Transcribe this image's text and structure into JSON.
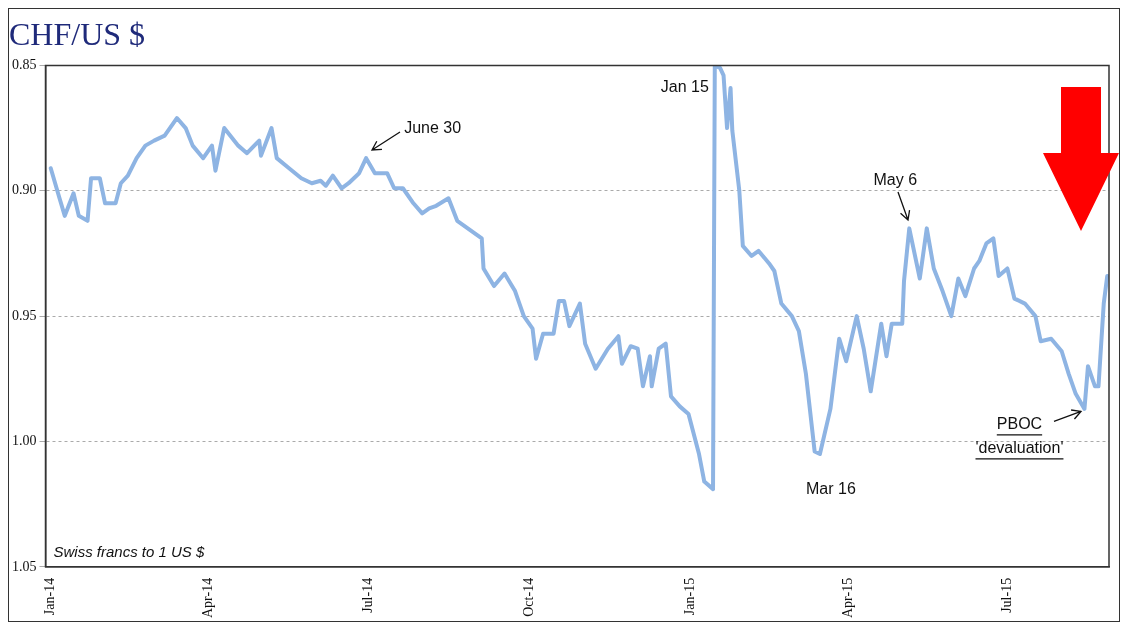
{
  "chart_data": {
    "type": "line",
    "title": "CHF/US $",
    "x": [
      "2014-01-01",
      "2014-01-06",
      "2014-01-09",
      "2014-01-14",
      "2014-01-17",
      "2014-01-22",
      "2014-01-24",
      "2014-01-29",
      "2014-02-01",
      "2014-02-07",
      "2014-02-10",
      "2014-02-14",
      "2014-02-19",
      "2014-02-24",
      "2014-03-01",
      "2014-03-07",
      "2014-03-14",
      "2014-03-19",
      "2014-03-23",
      "2014-03-29",
      "2014-04-03",
      "2014-04-05",
      "2014-04-10",
      "2014-04-18",
      "2014-04-23",
      "2014-04-30",
      "2014-05-01",
      "2014-05-07",
      "2014-05-10",
      "2014-05-17",
      "2014-05-24",
      "2014-05-30",
      "2014-06-04",
      "2014-06-07",
      "2014-06-11",
      "2014-06-16",
      "2014-06-20",
      "2014-06-26",
      "2014-06-30",
      "2014-07-05",
      "2014-07-12",
      "2014-07-16",
      "2014-07-21",
      "2014-07-27",
      "2014-08-01",
      "2014-08-05",
      "2014-08-09",
      "2014-08-16",
      "2014-08-21",
      "2014-08-27",
      "2014-09-04",
      "2014-09-05",
      "2014-09-11",
      "2014-09-17",
      "2014-09-23",
      "2014-09-28",
      "2014-10-03",
      "2014-10-05",
      "2014-10-09",
      "2014-10-15",
      "2014-10-18",
      "2014-10-21",
      "2014-10-24",
      "2014-10-30",
      "2014-11-02",
      "2014-11-08",
      "2014-11-15",
      "2014-11-21",
      "2014-11-23",
      "2014-11-28",
      "2014-12-02",
      "2014-12-05",
      "2014-12-09",
      "2014-12-10",
      "2014-12-14",
      "2014-12-18",
      "2014-12-21",
      "2014-12-26",
      "2014-12-31",
      "2015-01-06",
      "2015-01-09",
      "2015-01-14",
      "2015-01-15",
      "2015-01-18",
      "2015-01-20",
      "2015-01-22",
      "2015-01-24",
      "2015-01-25",
      "2015-01-29",
      "2015-01-31",
      "2015-02-05",
      "2015-02-09",
      "2015-02-15",
      "2015-02-18",
      "2015-02-22",
      "2015-02-28",
      "2015-03-04",
      "2015-03-08",
      "2015-03-13",
      "2015-03-16",
      "2015-03-22",
      "2015-03-27",
      "2015-03-31",
      "2015-04-06",
      "2015-04-10",
      "2015-04-14",
      "2015-04-20",
      "2015-04-23",
      "2015-04-26",
      "2015-05-02",
      "2015-05-03",
      "2015-05-06",
      "2015-05-12",
      "2015-05-16",
      "2015-05-20",
      "2015-05-25",
      "2015-05-30",
      "2015-06-03",
      "2015-06-07",
      "2015-06-12",
      "2015-06-15",
      "2015-06-19",
      "2015-06-23",
      "2015-06-26",
      "2015-07-01",
      "2015-07-05",
      "2015-07-11",
      "2015-07-17",
      "2015-07-20",
      "2015-07-26",
      "2015-08-01",
      "2015-08-05",
      "2015-08-09",
      "2015-08-14",
      "2015-08-16",
      "2015-08-20",
      "2015-08-22",
      "2015-08-25",
      "2015-08-27"
    ],
    "series": [
      {
        "color": "#8eb4e3",
        "values": [
          0.891,
          0.903,
          0.91,
          0.901,
          0.91,
          0.912,
          0.895,
          0.895,
          0.905,
          0.905,
          0.897,
          0.894,
          0.887,
          0.882,
          0.88,
          0.878,
          0.871,
          0.875,
          0.882,
          0.887,
          0.882,
          0.892,
          0.875,
          0.882,
          0.885,
          0.88,
          0.886,
          0.875,
          0.887,
          0.891,
          0.895,
          0.897,
          0.896,
          0.898,
          0.894,
          0.899,
          0.897,
          0.893,
          0.887,
          0.893,
          0.893,
          0.899,
          0.899,
          0.905,
          0.909,
          0.907,
          0.906,
          0.903,
          0.912,
          0.915,
          0.919,
          0.931,
          0.938,
          0.933,
          0.94,
          0.95,
          0.955,
          0.967,
          0.957,
          0.957,
          0.944,
          0.944,
          0.954,
          0.945,
          0.961,
          0.971,
          0.963,
          0.958,
          0.969,
          0.962,
          0.963,
          0.978,
          0.966,
          0.978,
          0.963,
          0.961,
          0.982,
          0.986,
          0.989,
          1.005,
          1.016,
          1.019,
          0.85,
          0.851,
          0.854,
          0.875,
          0.859,
          0.876,
          0.9,
          0.922,
          0.926,
          0.924,
          0.929,
          0.932,
          0.945,
          0.95,
          0.956,
          0.973,
          1.004,
          1.005,
          0.987,
          0.959,
          0.968,
          0.95,
          0.963,
          0.98,
          0.953,
          0.966,
          0.953,
          0.953,
          0.936,
          0.915,
          0.935,
          0.915,
          0.931,
          0.94,
          0.95,
          0.935,
          0.942,
          0.931,
          0.928,
          0.921,
          0.919,
          0.934,
          0.931,
          0.943,
          0.945,
          0.95,
          0.96,
          0.959,
          0.964,
          0.973,
          0.981,
          0.987,
          0.97,
          0.978,
          0.978,
          0.945,
          0.934
        ]
      }
    ],
    "xlim": [
      "2013-12-29",
      "2015-08-28"
    ],
    "xticks": [
      {
        "value": "2014-01-01",
        "label": "Jan-14"
      },
      {
        "value": "2014-04-01",
        "label": "Apr-14"
      },
      {
        "value": "2014-07-01",
        "label": "Jul-14"
      },
      {
        "value": "2014-10-01",
        "label": "Oct-14"
      },
      {
        "value": "2015-01-01",
        "label": "Jan-15"
      },
      {
        "value": "2015-04-01",
        "label": "Apr-15"
      },
      {
        "value": "2015-07-01",
        "label": "Jul-15"
      }
    ],
    "ylim": [
      1.05,
      0.85
    ],
    "yticks": [
      0.85,
      {
        "value": 0.9,
        "label": "0.90"
      },
      0.95,
      {
        "value": 1.0,
        "label": "1.00"
      },
      1.05
    ],
    "grid": "y",
    "legend": false,
    "marker": "none",
    "line_style": "solid",
    "annotations": [
      {
        "text": "June 30",
        "x": "2014-06-30",
        "y": 0.887
      },
      {
        "text": "Jan 15",
        "x": "2015-01-15",
        "y": 0.85
      },
      {
        "text": "Mar 16",
        "x": "2015-03-16",
        "y": 1.005
      },
      {
        "text": "May 6",
        "x": "2015-05-06",
        "y": 0.915
      },
      {
        "text": "PBOC 'devaluation'",
        "x": "2015-08-14",
        "y": 0.987
      },
      "Swiss francs to 1 US $"
    ]
  }
}
